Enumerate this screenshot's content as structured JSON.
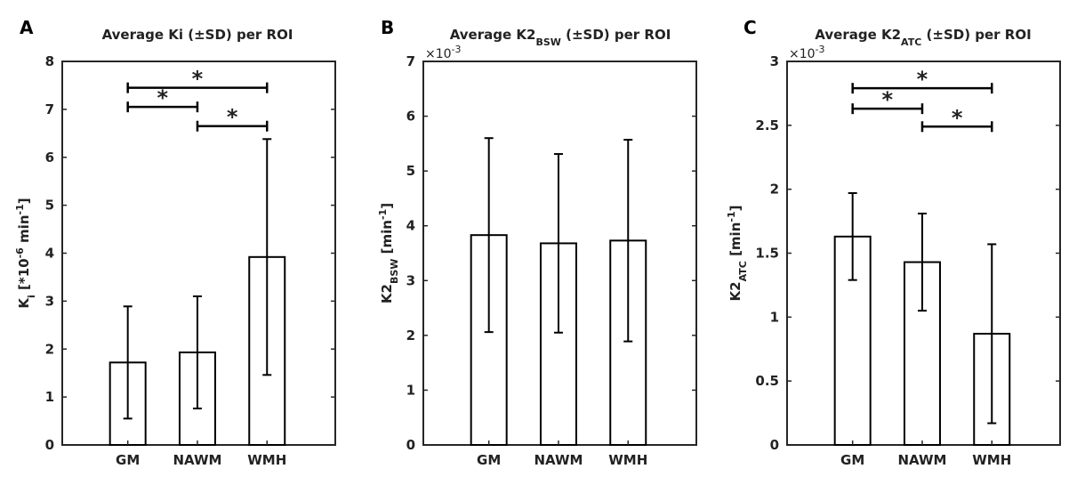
{
  "figure": {
    "panels": [
      "A",
      "B",
      "C"
    ]
  },
  "chart_data": [
    {
      "type": "bar",
      "panel_label": "A",
      "title": "Average Ki (±SD) per ROI",
      "title_parts": [
        {
          "text": "Average Ki (±SD) per ROI"
        }
      ],
      "ylabel_parts": [
        {
          "text": "K"
        },
        {
          "text": "i",
          "sub": true
        },
        {
          "text": " [*10"
        },
        {
          "text": "-6",
          "sup": true
        },
        {
          "text": " min"
        },
        {
          "text": "-1",
          "sup": true
        },
        {
          "text": "]"
        }
      ],
      "xlabel": "",
      "categories": [
        "GM",
        "NAWM",
        "WMH"
      ],
      "values": [
        1.72,
        1.93,
        3.92
      ],
      "errors": [
        1.17,
        1.17,
        2.46
      ],
      "ylim": [
        0,
        8
      ],
      "yticks": [
        0,
        1,
        2,
        3,
        4,
        5,
        6,
        7,
        8
      ],
      "ytick_labels": [
        "0",
        "1",
        "2",
        "3",
        "4",
        "5",
        "6",
        "7",
        "8"
      ],
      "multiplier": null,
      "significance": [
        {
          "from": 0,
          "to": 2,
          "y": 7.45,
          "label": "*"
        },
        {
          "from": 0,
          "to": 1,
          "y": 7.05,
          "label": "*"
        },
        {
          "from": 1,
          "to": 2,
          "y": 6.65,
          "label": "*"
        }
      ]
    },
    {
      "type": "bar",
      "panel_label": "B",
      "title": "Average K2BSW (±SD) per ROI",
      "title_parts": [
        {
          "text": "Average K2"
        },
        {
          "text": "BSW",
          "sub": true
        },
        {
          "text": " (±SD) per ROI"
        }
      ],
      "ylabel_parts": [
        {
          "text": "K2"
        },
        {
          "text": "BSW",
          "sub": true
        },
        {
          "text": " [min"
        },
        {
          "text": "-1",
          "sup": true
        },
        {
          "text": "]"
        }
      ],
      "xlabel": "",
      "categories": [
        "GM",
        "NAWM",
        "WMH"
      ],
      "values": [
        3.83,
        3.68,
        3.73
      ],
      "errors": [
        1.77,
        1.63,
        1.84
      ],
      "ylim": [
        0,
        7
      ],
      "yticks": [
        0,
        1,
        2,
        3,
        4,
        5,
        6,
        7
      ],
      "ytick_labels": [
        "0",
        "1",
        "2",
        "3",
        "4",
        "5",
        "6",
        "7"
      ],
      "multiplier": {
        "base": "×10",
        "exp": "-3"
      },
      "significance": []
    },
    {
      "type": "bar",
      "panel_label": "C",
      "title": "Average K2ATC (±SD) per ROI",
      "title_parts": [
        {
          "text": "Average K2"
        },
        {
          "text": "ATC",
          "sub": true
        },
        {
          "text": " (±SD) per ROI"
        }
      ],
      "ylabel_parts": [
        {
          "text": "K2"
        },
        {
          "text": "ATC",
          "sub": true
        },
        {
          "text": " [min"
        },
        {
          "text": "-1",
          "sup": true
        },
        {
          "text": "]"
        }
      ],
      "xlabel": "",
      "categories": [
        "GM",
        "NAWM",
        "WMH"
      ],
      "values": [
        1.63,
        1.43,
        0.87
      ],
      "errors": [
        0.34,
        0.38,
        0.7
      ],
      "ylim": [
        0,
        3
      ],
      "yticks": [
        0,
        0.5,
        1,
        1.5,
        2,
        2.5,
        3
      ],
      "ytick_labels": [
        "0",
        "0.5",
        "1",
        "1.5",
        "2",
        "2.5",
        "3"
      ],
      "multiplier": {
        "base": "×10",
        "exp": "-3"
      },
      "significance": [
        {
          "from": 0,
          "to": 2,
          "y": 2.79,
          "label": "*"
        },
        {
          "from": 0,
          "to": 1,
          "y": 2.63,
          "label": "*"
        },
        {
          "from": 1,
          "to": 2,
          "y": 2.49,
          "label": "*"
        }
      ]
    }
  ]
}
